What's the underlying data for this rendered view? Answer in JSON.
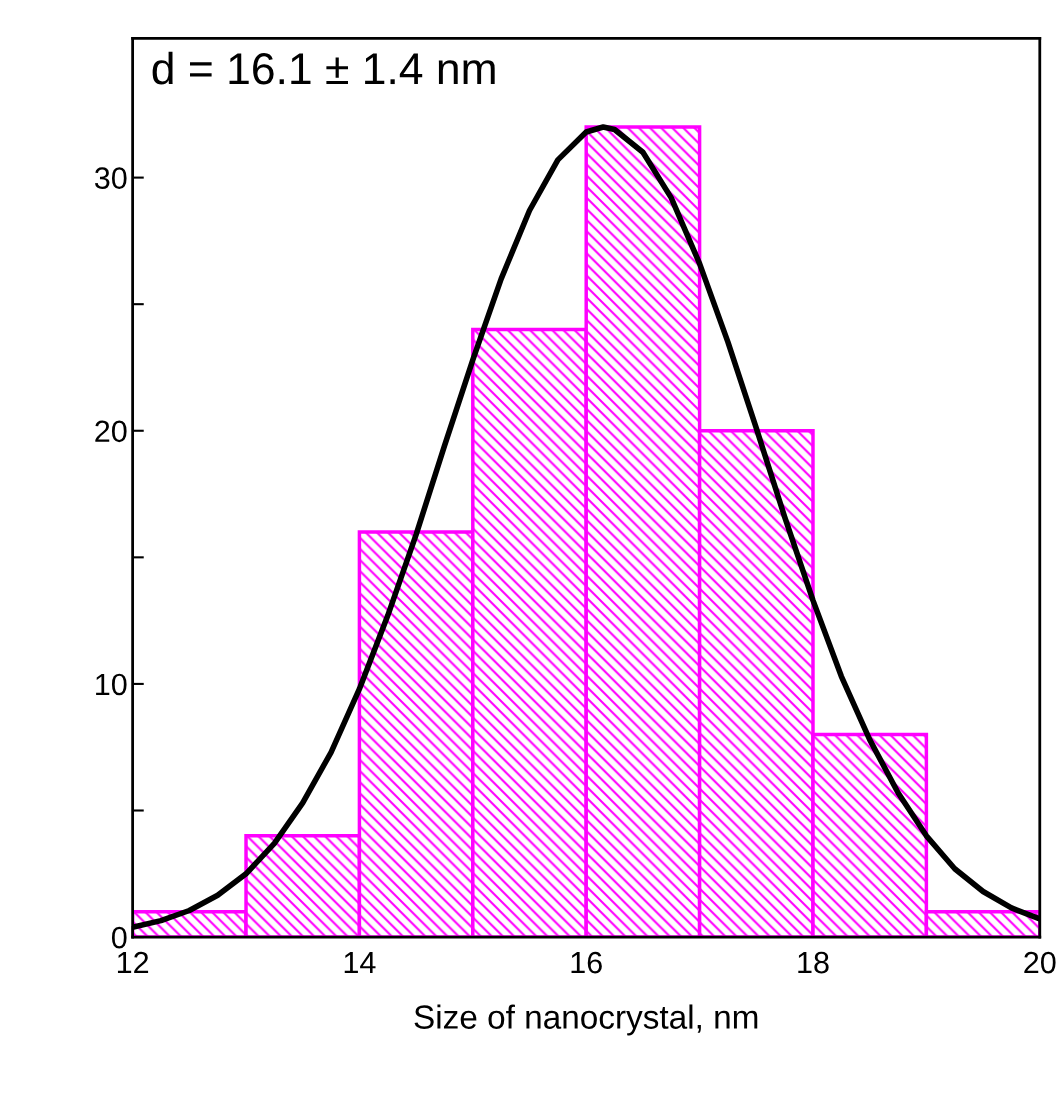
{
  "chart_data": {
    "type": "histogram",
    "xlabel": "Size of nanocrystal, nm",
    "annotations": [
      "d = 16.1 ± 1.4 nm"
    ],
    "bins": [
      12,
      13,
      14,
      15,
      16,
      17,
      18,
      19,
      20
    ],
    "values": [
      1,
      4,
      16,
      24,
      32,
      20,
      8,
      1
    ],
    "color": "#ff00ff",
    "series": [
      {
        "type": "line",
        "color": "#000000",
        "x": [
          12,
          12.25,
          12.5,
          12.75,
          13,
          13.25,
          13.5,
          13.75,
          14,
          14.25,
          14.5,
          14.75,
          15,
          15.25,
          15.5,
          15.75,
          16,
          16.15,
          16.25,
          16.5,
          16.75,
          17,
          17.25,
          17.5,
          17.75,
          18,
          18.25,
          18.5,
          18.75,
          19,
          19.25,
          19.5,
          19.75,
          20
        ],
        "values": [
          0.39,
          0.65,
          1.05,
          1.65,
          2.5,
          3.7,
          5.3,
          7.3,
          9.8,
          12.7,
          15.9,
          19.4,
          22.8,
          26.0,
          28.7,
          30.7,
          31.8,
          32,
          31.9,
          31.0,
          29.2,
          26.6,
          23.5,
          20.1,
          16.6,
          13.3,
          10.3,
          7.8,
          5.7,
          4.0,
          2.7,
          1.8,
          1.15,
          0.72
        ]
      }
    ],
    "xlim": [
      12,
      20
    ],
    "ylim": [
      0,
      35.5
    ],
    "xticks": [
      12,
      14,
      16,
      18,
      20
    ],
    "yticks": [
      0,
      {
        "value": 5,
        "label": null
      },
      10,
      {
        "value": 15,
        "label": null
      },
      20,
      {
        "value": 25,
        "label": null
      },
      30
    ],
    "grid": false,
    "legend": false
  }
}
